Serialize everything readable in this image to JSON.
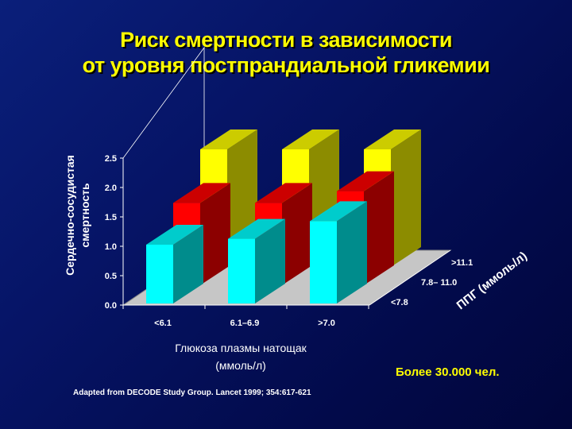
{
  "slide": {
    "title_line1": "Риск смертности в зависимости",
    "title_line2": "от уровня постпрандиальной гликемии",
    "note_total": "Более 30.000 чел.",
    "source": "Adapted from DECODE Study Group. Lancet 1999; 354:617-621"
  },
  "chart_data": {
    "type": "bar",
    "ylabel_line1": "Сердечно-сосудистая",
    "ylabel_line2": "смертность",
    "xlabel_line1": "Глюкоза  плазмы натощак",
    "xlabel_line2": "(ммоль/л)",
    "zlabel": "ППГ (ммоль/л)",
    "categories": [
      "<6.1",
      "6.1–6.9",
      ">7.0"
    ],
    "depth_categories": [
      "<7.8",
      "7.8– 11.0",
      ">11.1"
    ],
    "yticks": [
      "0.0",
      "0.5",
      "1.0",
      "1.5",
      "2.0",
      "2.5"
    ],
    "ylim": [
      0,
      2.5
    ],
    "grid": false,
    "series": [
      {
        "name": "<7.8",
        "color": "#00ffff",
        "values": [
          1.0,
          1.1,
          1.4
        ]
      },
      {
        "name": "7.8– 11.0",
        "color": "#ff0000",
        "values": [
          1.4,
          1.4,
          1.6
        ]
      },
      {
        "name": ">11.1",
        "color": "#ffff00",
        "values": [
          2.0,
          2.0,
          2.0
        ]
      }
    ]
  }
}
